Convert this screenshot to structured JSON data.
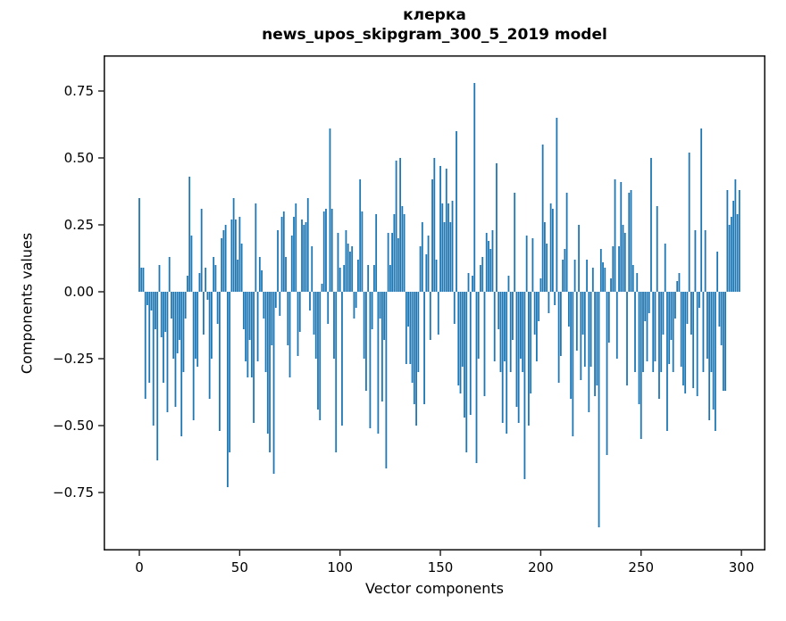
{
  "figure": {
    "background": "#ffffff",
    "text_color": "#000000",
    "spine_color": "#1a1a1a"
  },
  "title": {
    "line1": "клерка",
    "line2": "news_upos_skipgram_300_5_2019 model"
  },
  "chart_data": {
    "type": "bar",
    "title": "клерка",
    "subtitle": "news_upos_skipgram_300_5_2019 model",
    "xlabel": "Vector components",
    "ylabel": "Components values",
    "bar_color": "#1f77b4",
    "grid": false,
    "legend": null,
    "xlim": [
      -17.8,
      312.0
    ],
    "ylim": [
      -0.967,
      0.883
    ],
    "xticks": [
      0,
      50,
      100,
      150,
      200,
      250,
      300
    ],
    "xtick_labels": [
      "0",
      "50",
      "100",
      "150",
      "200",
      "250",
      "300"
    ],
    "yticks": [
      0.75,
      0.5,
      0.25,
      0.0,
      -0.25,
      -0.5,
      -0.75
    ],
    "ytick_labels": [
      "0.75",
      "0.50",
      "0.25",
      "0.00",
      "−0.25",
      "−0.50",
      "−0.75"
    ],
    "x_start": 0,
    "values": [
      0.35,
      0.09,
      0.09,
      -0.4,
      -0.05,
      -0.34,
      -0.07,
      -0.5,
      -0.14,
      -0.63,
      0.1,
      -0.17,
      -0.34,
      -0.15,
      -0.45,
      0.13,
      -0.1,
      -0.25,
      -0.43,
      -0.23,
      -0.18,
      -0.54,
      -0.3,
      -0.1,
      0.06,
      0.43,
      0.21,
      -0.48,
      -0.25,
      -0.28,
      0.07,
      0.31,
      -0.16,
      0.09,
      -0.03,
      -0.4,
      -0.25,
      0.13,
      0.1,
      -0.12,
      -0.52,
      0.2,
      0.23,
      0.25,
      -0.73,
      -0.6,
      0.27,
      0.35,
      0.27,
      0.12,
      0.28,
      0.18,
      -0.14,
      -0.26,
      -0.32,
      -0.18,
      -0.32,
      -0.49,
      0.33,
      -0.26,
      0.13,
      0.08,
      -0.1,
      -0.3,
      -0.53,
      -0.6,
      -0.2,
      -0.68,
      -0.06,
      0.23,
      -0.09,
      0.28,
      0.3,
      0.13,
      -0.2,
      -0.32,
      0.21,
      0.28,
      0.33,
      -0.24,
      -0.15,
      0.27,
      0.25,
      0.26,
      0.35,
      -0.07,
      0.17,
      -0.16,
      -0.25,
      -0.44,
      -0.48,
      0.03,
      0.3,
      0.31,
      -0.12,
      0.61,
      0.31,
      -0.25,
      -0.6,
      0.22,
      0.09,
      -0.5,
      0.1,
      0.23,
      0.18,
      0.15,
      0.17,
      -0.1,
      -0.06,
      0.12,
      0.42,
      0.3,
      -0.25,
      -0.37,
      0.1,
      -0.51,
      -0.14,
      0.1,
      0.29,
      -0.53,
      -0.1,
      -0.41,
      -0.18,
      -0.66,
      0.22,
      0.1,
      0.22,
      0.29,
      0.49,
      0.2,
      0.5,
      0.32,
      0.29,
      -0.27,
      -0.13,
      -0.27,
      -0.34,
      -0.42,
      -0.5,
      -0.3,
      0.17,
      0.26,
      -0.42,
      0.14,
      0.21,
      -0.18,
      0.42,
      0.5,
      0.12,
      -0.16,
      0.47,
      0.33,
      0.26,
      0.46,
      0.33,
      0.26,
      0.34,
      -0.12,
      0.6,
      -0.35,
      -0.38,
      -0.28,
      -0.47,
      -0.6,
      0.07,
      -0.46,
      0.06,
      0.78,
      -0.64,
      -0.25,
      0.1,
      0.13,
      -0.39,
      0.22,
      0.19,
      0.16,
      0.23,
      -0.26,
      0.48,
      -0.14,
      -0.3,
      -0.49,
      -0.26,
      -0.53,
      0.06,
      -0.3,
      -0.18,
      0.37,
      -0.43,
      -0.49,
      -0.25,
      -0.3,
      -0.7,
      0.21,
      -0.5,
      -0.38,
      0.2,
      -0.16,
      -0.26,
      -0.11,
      0.05,
      0.55,
      0.26,
      0.18,
      -0.08,
      0.33,
      0.31,
      -0.05,
      0.65,
      -0.34,
      -0.24,
      0.12,
      0.16,
      0.37,
      -0.13,
      -0.4,
      -0.54,
      0.12,
      -0.22,
      0.25,
      -0.33,
      -0.16,
      -0.28,
      0.12,
      -0.45,
      -0.28,
      0.09,
      -0.39,
      -0.35,
      -0.88,
      0.16,
      0.11,
      0.09,
      -0.61,
      -0.19,
      0.05,
      0.17,
      0.42,
      -0.25,
      0.17,
      0.41,
      0.25,
      0.22,
      -0.35,
      0.37,
      0.38,
      0.1,
      -0.3,
      0.07,
      -0.42,
      -0.55,
      -0.3,
      -0.11,
      -0.26,
      -0.08,
      0.5,
      -0.3,
      -0.26,
      0.32,
      -0.4,
      -0.3,
      -0.16,
      0.18,
      -0.52,
      -0.27,
      -0.18,
      -0.3,
      -0.1,
      0.04,
      0.07,
      -0.28,
      -0.35,
      -0.38,
      -0.12,
      0.52,
      -0.16,
      -0.36,
      0.23,
      -0.39,
      -0.06,
      0.61,
      -0.3,
      0.23,
      -0.25,
      -0.48,
      -0.3,
      -0.44,
      -0.52,
      0.15,
      -0.13,
      -0.2,
      -0.37,
      -0.37,
      0.38,
      0.25,
      0.28,
      0.34,
      0.42,
      0.29,
      0.38
    ]
  }
}
